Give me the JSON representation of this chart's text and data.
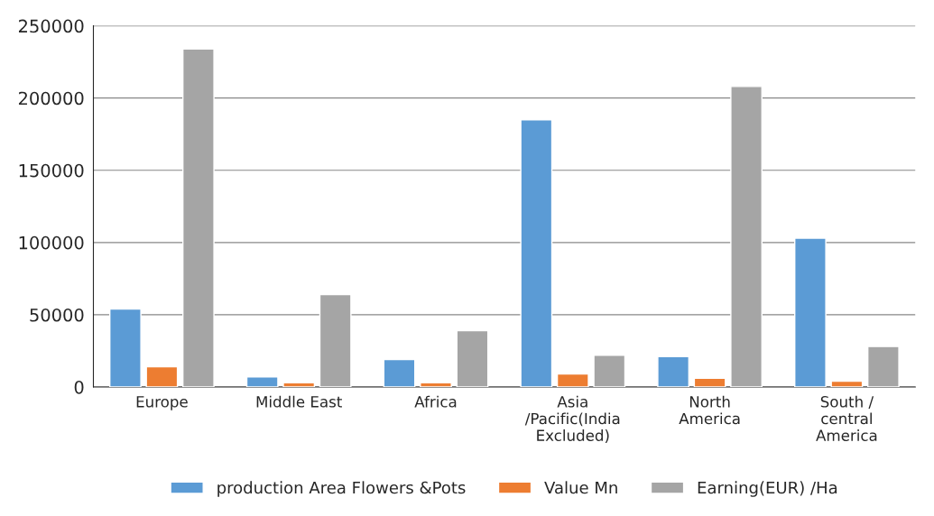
{
  "chart_data": {
    "type": "bar",
    "categories": [
      "Europe",
      "Middle East",
      "Africa",
      "Asia\n/Pacific(India\nExcluded)",
      "North\nAmerica",
      "South /\ncentral\nAmerica"
    ],
    "series": [
      {
        "name": "production Area Flowers &Pots",
        "color": "#5b9bd5",
        "values": [
          54000,
          7000,
          19000,
          185000,
          21000,
          103000
        ]
      },
      {
        "name": "Value Mn",
        "color": "#ed7d31",
        "values": [
          14000,
          3000,
          3000,
          9000,
          6000,
          4000
        ]
      },
      {
        "name": "Earning(EUR) /Ha",
        "color": "#a5a5a5",
        "values": [
          234000,
          64000,
          39000,
          22000,
          208000,
          28000
        ]
      }
    ],
    "ylim": [
      0,
      250000
    ],
    "yticks": [
      0,
      50000,
      100000,
      150000,
      200000,
      250000
    ],
    "grid": "y",
    "legend": "bottom"
  }
}
